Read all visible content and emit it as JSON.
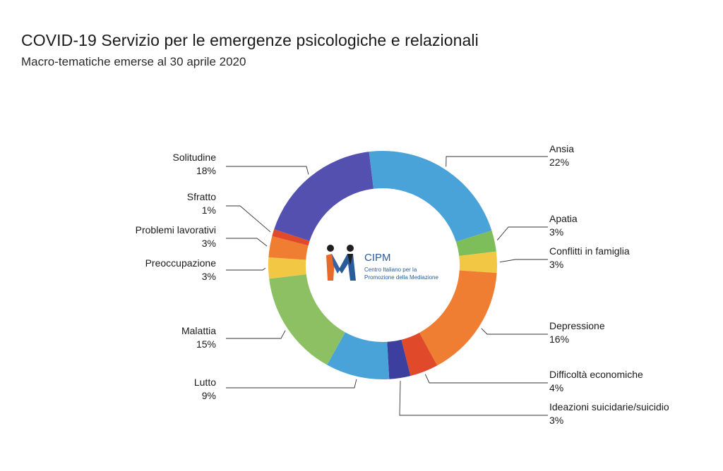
{
  "header": {
    "title": "COVID-19 Servizio per le emergenze psicologiche e relazionali",
    "subtitle": "Macro-tematiche emerse al 30 aprile 2020"
  },
  "logo": {
    "name": "CIPM",
    "line1": "Centro Italiano per la",
    "line2": "Promozione della Mediazione"
  },
  "chart_data": {
    "type": "pie",
    "variant": "donut",
    "title": "COVID-19 Servizio per le emergenze psicologiche e relazionali",
    "subtitle": "Macro-tematiche emerse al 30 aprile 2020",
    "unit": "%",
    "slices": [
      {
        "label": "Ansia",
        "value": 22,
        "display": "22%",
        "color": "#4aa3d8"
      },
      {
        "label": "Apatia",
        "value": 3,
        "display": "3%",
        "color": "#7dbd5a"
      },
      {
        "label": "Conflitti in famiglia",
        "value": 3,
        "display": "3%",
        "color": "#f2c744"
      },
      {
        "label": "Depressione",
        "value": 16,
        "display": "16%",
        "color": "#ef7d32"
      },
      {
        "label": "Difficoltà economiche",
        "value": 4,
        "display": "4%",
        "color": "#e0492a"
      },
      {
        "label": "Ideazioni suicidarie/suicidio",
        "value": 3,
        "display": "3%",
        "color": "#3d3f9f"
      },
      {
        "label": "Lutto",
        "value": 9,
        "display": "9%",
        "color": "#4aa3d8"
      },
      {
        "label": "Malattia",
        "value": 15,
        "display": "15%",
        "color": "#8dc063"
      },
      {
        "label": "Preoccupazione",
        "value": 3,
        "display": "3%",
        "color": "#f2c744"
      },
      {
        "label": "Problemi lavorativi",
        "value": 3,
        "display": "3%",
        "color": "#ef7d32"
      },
      {
        "label": "Sfratto",
        "value": 1,
        "display": "1%",
        "color": "#e0492a"
      },
      {
        "label": "Solitudine",
        "value": 18,
        "display": "18%",
        "color": "#5450b0"
      }
    ]
  }
}
